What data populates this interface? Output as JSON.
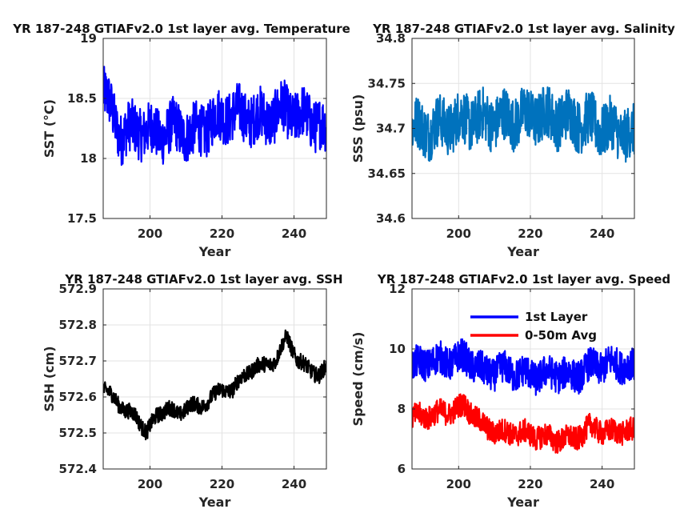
{
  "chart_data": [
    {
      "type": "line",
      "title": "YR 187-248 GTIAFv2.0 1st layer avg. Temperature",
      "xlabel": "Year",
      "ylabel": "SST (°C)",
      "xlim": [
        187,
        249
      ],
      "ylim": [
        17.5,
        19
      ],
      "xticks": [
        "200",
        "220",
        "240"
      ],
      "yticks": [
        "17.5",
        "18",
        "18.5",
        "19"
      ],
      "grid": true,
      "series": [
        {
          "color": "#0000ff",
          "x": [
            187,
            192,
            197,
            202,
            207,
            212,
            217,
            222,
            227,
            232,
            237,
            242,
            247,
            249
          ],
          "y": [
            18.55,
            18.2,
            18.25,
            18.2,
            18.25,
            18.2,
            18.3,
            18.38,
            18.35,
            18.33,
            18.4,
            18.35,
            18.3,
            18.2
          ]
        }
      ]
    },
    {
      "type": "line",
      "title": "YR 187-248 GTIAFv2.0 1st layer avg. Salinity",
      "xlabel": "Year",
      "ylabel": "SSS (psu)",
      "xlim": [
        187,
        249
      ],
      "ylim": [
        34.6,
        34.8
      ],
      "xticks": [
        "200",
        "220",
        "240"
      ],
      "yticks": [
        "34.6",
        "34.65",
        "34.7",
        "34.75",
        "34.8"
      ],
      "grid": true,
      "series": [
        {
          "color": "#0072bd",
          "x": [
            187,
            192,
            197,
            202,
            207,
            212,
            217,
            222,
            227,
            232,
            237,
            242,
            247,
            249
          ],
          "y": [
            34.7,
            34.7,
            34.705,
            34.71,
            34.71,
            34.71,
            34.712,
            34.715,
            34.712,
            34.71,
            34.705,
            34.7,
            34.695,
            34.69
          ]
        }
      ]
    },
    {
      "type": "line",
      "title": "YR 187-248 GTIAFv2.0 1st layer avg. SSH",
      "xlabel": "Year",
      "ylabel": "SSH (cm)",
      "xlim": [
        187,
        249
      ],
      "ylim": [
        572.4,
        572.9
      ],
      "xticks": [
        "200",
        "220",
        "240"
      ],
      "yticks": [
        "572.4",
        "572.5",
        "572.6",
        "572.7",
        "572.8",
        "572.9"
      ],
      "grid": true,
      "series": [
        {
          "color": "#000000",
          "x": [
            187,
            190,
            193,
            196,
            199,
            202,
            205,
            208,
            211,
            214,
            217,
            220,
            223,
            226,
            229,
            232,
            235,
            238,
            241,
            244,
            247,
            249
          ],
          "y": [
            572.62,
            572.6,
            572.56,
            572.55,
            572.5,
            572.55,
            572.57,
            572.55,
            572.58,
            572.57,
            572.6,
            572.62,
            572.62,
            572.66,
            572.68,
            572.69,
            572.7,
            572.77,
            572.7,
            572.68,
            572.66,
            572.68
          ]
        }
      ]
    },
    {
      "type": "line",
      "title": "YR 187-248 GTIAFv2.0 1st layer avg. Speed",
      "xlabel": "Year",
      "ylabel": "Speed (cm/s)",
      "xlim": [
        187,
        249
      ],
      "ylim": [
        6,
        12
      ],
      "xticks": [
        "200",
        "220",
        "240"
      ],
      "yticks": [
        "6",
        "8",
        "10",
        "12"
      ],
      "grid": true,
      "legend": "top-center",
      "series": [
        {
          "name": "1st Layer",
          "color": "#0000ff",
          "x": [
            187,
            192,
            197,
            202,
            207,
            212,
            217,
            222,
            227,
            232,
            237,
            242,
            247,
            249
          ],
          "y": [
            9.4,
            9.6,
            9.6,
            9.7,
            9.2,
            9.3,
            9.2,
            9.1,
            9.2,
            9.1,
            9.4,
            9.5,
            9.5,
            9.3
          ]
        },
        {
          "name": "0-50m Avg",
          "color": "#ff0000",
          "x": [
            187,
            192,
            197,
            202,
            207,
            212,
            217,
            222,
            227,
            232,
            237,
            242,
            247,
            249
          ],
          "y": [
            7.7,
            7.8,
            7.9,
            8.1,
            7.4,
            7.2,
            7.2,
            7.1,
            7.0,
            7.0,
            7.4,
            7.2,
            7.3,
            7.2
          ]
        }
      ]
    }
  ]
}
